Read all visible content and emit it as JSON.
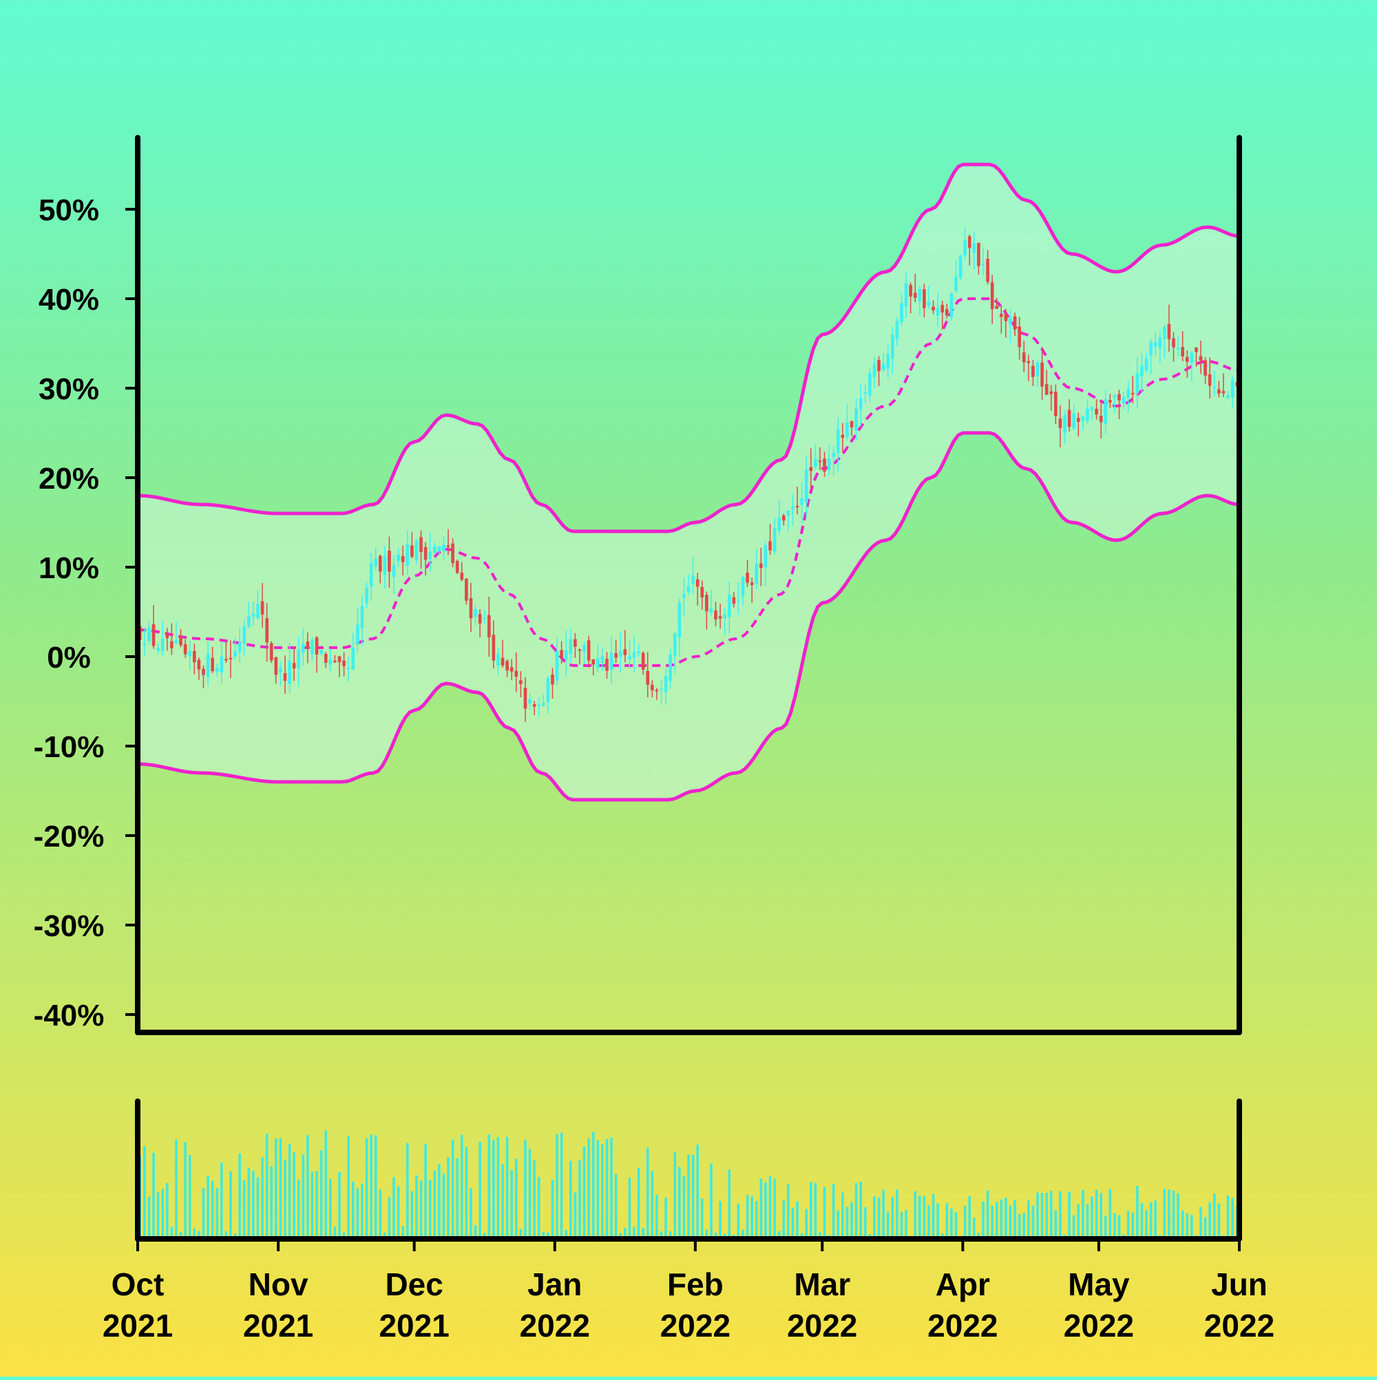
{
  "chart_data": {
    "type": "candlestick",
    "title": "",
    "xlabel": "",
    "ylabel": "",
    "ylim": [
      -42,
      58
    ],
    "y_ticks": [
      "50%",
      "40%",
      "30%",
      "20%",
      "10%",
      "0%",
      "-10%",
      "-20%",
      "-30%",
      "-40%"
    ],
    "y_tick_values": [
      50,
      40,
      30,
      20,
      10,
      0,
      -10,
      -20,
      -30,
      -40
    ],
    "x_range": [
      "2021-10-01",
      "2022-06-01"
    ],
    "x_ticks": [
      {
        "date": "2021-10-01",
        "month": "Oct",
        "year": "2021"
      },
      {
        "date": "2021-11-01",
        "month": "Nov",
        "year": "2021"
      },
      {
        "date": "2021-12-01",
        "month": "Dec",
        "year": "2021"
      },
      {
        "date": "2022-01-01",
        "month": "Jan",
        "year": "2022"
      },
      {
        "date": "2022-02-01",
        "month": "Feb",
        "year": "2022"
      },
      {
        "date": "2022-03-01",
        "month": "Mar",
        "year": "2022"
      },
      {
        "date": "2022-04-01",
        "month": "Apr",
        "year": "2022"
      },
      {
        "date": "2022-05-01",
        "month": "May",
        "year": "2022"
      },
      {
        "date": "2022-06-01",
        "month": "Jun",
        "year": "2022"
      }
    ],
    "close_points": [
      [
        "2021-10-01",
        3
      ],
      [
        "2021-10-08",
        1
      ],
      [
        "2021-10-15",
        -1
      ],
      [
        "2021-10-22",
        0
      ],
      [
        "2021-10-27",
        6
      ],
      [
        "2021-11-02",
        -2
      ],
      [
        "2021-11-09",
        1
      ],
      [
        "2021-11-16",
        -2
      ],
      [
        "2021-11-23",
        10
      ],
      [
        "2021-12-01",
        12
      ],
      [
        "2021-12-08",
        12
      ],
      [
        "2021-12-15",
        5
      ],
      [
        "2021-12-22",
        -2
      ],
      [
        "2021-12-28",
        -6
      ],
      [
        "2022-01-05",
        2
      ],
      [
        "2022-01-12",
        -1
      ],
      [
        "2022-01-19",
        0
      ],
      [
        "2022-01-24",
        -3
      ],
      [
        "2022-01-31",
        8
      ],
      [
        "2022-02-07",
        5
      ],
      [
        "2022-02-14",
        9
      ],
      [
        "2022-02-21",
        15
      ],
      [
        "2022-02-28",
        21
      ],
      [
        "2022-03-07",
        25
      ],
      [
        "2022-03-14",
        33
      ],
      [
        "2022-03-21",
        41
      ],
      [
        "2022-03-28",
        38
      ],
      [
        "2022-04-03",
        46
      ],
      [
        "2022-04-10",
        38
      ],
      [
        "2022-04-17",
        32
      ],
      [
        "2022-04-24",
        26
      ],
      [
        "2022-05-01",
        27
      ],
      [
        "2022-05-08",
        30
      ],
      [
        "2022-05-15",
        36
      ],
      [
        "2022-05-22",
        34
      ],
      [
        "2022-05-29",
        29
      ],
      [
        "2022-06-01",
        30
      ]
    ],
    "middle_band_points": [
      [
        "2021-10-01",
        3
      ],
      [
        "2021-10-15",
        2
      ],
      [
        "2021-11-01",
        1
      ],
      [
        "2021-11-15",
        1
      ],
      [
        "2021-11-22",
        2
      ],
      [
        "2021-12-01",
        9
      ],
      [
        "2021-12-08",
        12
      ],
      [
        "2021-12-15",
        11
      ],
      [
        "2021-12-22",
        7
      ],
      [
        "2021-12-29",
        2
      ],
      [
        "2022-01-05",
        -1
      ],
      [
        "2022-01-19",
        -1
      ],
      [
        "2022-01-26",
        -1
      ],
      [
        "2022-02-01",
        0
      ],
      [
        "2022-02-10",
        2
      ],
      [
        "2022-02-20",
        7
      ],
      [
        "2022-03-01",
        21
      ],
      [
        "2022-03-15",
        28
      ],
      [
        "2022-03-25",
        35
      ],
      [
        "2022-04-01",
        40
      ],
      [
        "2022-04-07",
        40
      ],
      [
        "2022-04-15",
        36
      ],
      [
        "2022-04-25",
        30
      ],
      [
        "2022-05-05",
        28
      ],
      [
        "2022-05-15",
        31
      ],
      [
        "2022-05-25",
        33
      ],
      [
        "2022-06-01",
        32
      ]
    ],
    "band_width": 15,
    "series": [
      {
        "name": "",
        "color": "#ee22cc",
        "role": "upper-band"
      },
      {
        "name": "",
        "color": "#ee22cc",
        "role": "middle-band"
      },
      {
        "name": "",
        "color": "#ee22cc",
        "role": "lower-band"
      },
      {
        "name": "",
        "color": "#e04848",
        "role": "down-candle"
      },
      {
        "name": "",
        "color": "#40f0f0",
        "role": "up-candle"
      }
    ],
    "volume": {
      "color": "#40e8e0",
      "relative_levels": [
        [
          "2021-10-01",
          0.75
        ],
        [
          "2021-11-01",
          0.8
        ],
        [
          "2021-12-01",
          0.75
        ],
        [
          "2022-01-01",
          0.8
        ],
        [
          "2022-02-01",
          0.7
        ],
        [
          "2022-02-20",
          0.45
        ],
        [
          "2022-03-01",
          0.45
        ],
        [
          "2022-04-01",
          0.35
        ],
        [
          "2022-05-01",
          0.4
        ],
        [
          "2022-06-01",
          0.35
        ]
      ]
    },
    "grid": false,
    "legend": "none",
    "colors": {
      "axis": "#000000",
      "band_fill": "#c8f8d4"
    }
  }
}
